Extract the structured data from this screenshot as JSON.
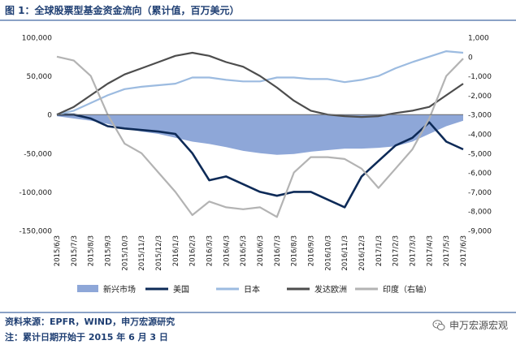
{
  "header": {
    "title": "图 1：全球股票型基金资金流向（累计值，百万美元）"
  },
  "footer": {
    "source": "资料来源：EPFR，WIND，申万宏源研究",
    "note": "注：累计日期开始于 2015 年 6 月 3 日",
    "watermark": "申万宏源宏观"
  },
  "chart_data": {
    "type": "line",
    "x_dates": [
      "2015/6/3",
      "2015/7/3",
      "2015/8/3",
      "2015/9/3",
      "2015/10/3",
      "2015/11/3",
      "2015/12/3",
      "2016/1/3",
      "2016/2/3",
      "2016/3/3",
      "2016/4/3",
      "2016/5/3",
      "2016/6/3",
      "2016/7/3",
      "2016/8/3",
      "2016/9/3",
      "2016/10/3",
      "2016/11/3",
      "2016/12/3",
      "2017/1/3",
      "2017/2/3",
      "2017/3/3",
      "2017/4/3",
      "2017/5/3",
      "2017/6/3"
    ],
    "x_tick_labels": [
      "2015/6/3",
      "2015/7/3",
      "2015/8/3",
      "2015/9/3",
      "2015/10/3",
      "2015/11/3",
      "2015/12/3",
      "2016/1/3",
      "2016/2/3",
      "2016/3/3",
      "2016/4/3",
      "2016/5/3",
      "2016/6/3",
      "2016/7/3",
      "2016/8/3",
      "2016/9/3",
      "2016/10/3",
      "2016/11/3",
      "2016/12/3",
      "2017/1/3",
      "2017/2/3",
      "2017/3/3",
      "2017/4/3",
      "2017/5/3",
      "2017/6/3"
    ],
    "y_left": {
      "min": -150000,
      "max": 100000,
      "ticks": [
        100000,
        50000,
        0,
        -50000,
        -100000,
        -150000
      ],
      "tick_labels": [
        "100,000",
        "50,000",
        "0",
        "-50,000",
        "-100,000",
        "-150,000"
      ]
    },
    "y_right": {
      "min": -9000,
      "max": 1000,
      "ticks": [
        1000,
        0,
        -1000,
        -2000,
        -3000,
        -4000,
        -5000,
        -6000,
        -7000,
        -8000,
        -9000
      ],
      "tick_labels": [
        "1,000",
        "0",
        "-1,000",
        "-2,000",
        "-3,000",
        "-4,000",
        "-5,000",
        "-6,000",
        "-7,000",
        "-8,000",
        "-9,000"
      ]
    },
    "legend_position": "bottom",
    "series": [
      {
        "name": "新兴市场",
        "kind": "area",
        "axis": "left",
        "color": "#8ea7d8",
        "values": [
          -2000,
          -5000,
          -8000,
          -12000,
          -18000,
          -22000,
          -25000,
          -30000,
          -35000,
          -38000,
          -42000,
          -47000,
          -50000,
          -52000,
          -51000,
          -48000,
          -46000,
          -44000,
          -44000,
          -43000,
          -41000,
          -35000,
          -25000,
          -15000,
          -8000
        ]
      },
      {
        "name": "美国",
        "kind": "line",
        "axis": "left",
        "color": "#0d2a57",
        "values": [
          0,
          0,
          -5000,
          -15000,
          -18000,
          -20000,
          -22000,
          -25000,
          -50000,
          -85000,
          -80000,
          -90000,
          -100000,
          -105000,
          -100000,
          -100000,
          -110000,
          -120000,
          -80000,
          -60000,
          -40000,
          -30000,
          -10000,
          -35000,
          -45000
        ]
      },
      {
        "name": "日本",
        "kind": "line",
        "axis": "left",
        "color": "#9cbbe0",
        "values": [
          0,
          5000,
          15000,
          25000,
          33000,
          36000,
          38000,
          40000,
          48000,
          48000,
          45000,
          43000,
          43000,
          48000,
          48000,
          46000,
          46000,
          42000,
          45000,
          50000,
          60000,
          68000,
          75000,
          82000,
          80000
        ]
      },
      {
        "name": "发达欧洲",
        "kind": "line",
        "axis": "left",
        "color": "#4d4d4d",
        "values": [
          0,
          10000,
          25000,
          40000,
          52000,
          60000,
          68000,
          76000,
          80000,
          76000,
          68000,
          62000,
          50000,
          35000,
          18000,
          5000,
          0,
          -2000,
          -3000,
          -2000,
          2000,
          5000,
          10000,
          25000,
          40000
        ]
      },
      {
        "name": "印度（右轴）",
        "kind": "line",
        "axis": "right",
        "color": "#b3b3b3",
        "values": [
          0,
          -200,
          -1000,
          -3000,
          -4500,
          -5000,
          -6000,
          -7000,
          -8200,
          -7500,
          -7800,
          -7900,
          -7800,
          -8300,
          -6000,
          -5200,
          -5200,
          -5300,
          -5800,
          -6800,
          -5800,
          -4800,
          -3200,
          -1000,
          -100
        ]
      }
    ]
  }
}
